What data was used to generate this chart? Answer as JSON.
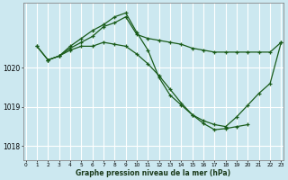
{
  "title": "Graphe pression niveau de la mer (hPa)",
  "background_color": "#cce8f0",
  "grid_color": "#ffffff",
  "line_color": "#1a5c1a",
  "xmin": 0,
  "xmax": 23,
  "ylim": [
    1017.65,
    1021.65
  ],
  "yticks": [
    1018,
    1019,
    1020
  ],
  "series1_x": [
    1,
    2,
    3,
    4,
    5,
    6,
    7,
    8,
    9,
    10,
    11,
    12,
    13,
    14,
    15,
    16,
    17,
    18,
    19,
    20,
    21,
    22,
    23
  ],
  "series1_y": [
    1020.55,
    1020.2,
    1020.3,
    1020.5,
    1020.65,
    1020.8,
    1021.05,
    1021.15,
    1021.3,
    1020.85,
    1020.75,
    1020.7,
    1020.65,
    1020.6,
    1020.5,
    1020.45,
    1020.4,
    1020.4,
    1020.4,
    1020.4,
    1020.4,
    1020.4,
    1020.65
  ],
  "series2_x": [
    1,
    2,
    3,
    4,
    5,
    6,
    7,
    8,
    9,
    10,
    11,
    12,
    13,
    14,
    15,
    16,
    17,
    18,
    19,
    20,
    21,
    22,
    23
  ],
  "series2_y": [
    1020.55,
    1020.2,
    1020.3,
    1020.55,
    1020.75,
    1020.95,
    1021.1,
    1021.3,
    1021.4,
    1020.9,
    1020.45,
    1019.75,
    1019.3,
    1019.05,
    1018.8,
    1018.65,
    1018.55,
    1018.5,
    1018.75,
    1019.05,
    1019.35,
    1019.6,
    1020.65
  ],
  "series3_x": [
    2,
    3,
    4,
    5,
    6,
    7,
    8,
    9,
    10,
    11,
    12,
    13,
    14,
    15,
    16,
    17,
    18,
    19,
    20
  ],
  "series3_y": [
    1020.2,
    1020.3,
    1020.45,
    1020.55,
    1020.55,
    1020.65,
    1020.6,
    1020.55,
    1020.35,
    1020.1,
    1019.8,
    1019.45,
    1019.1,
    1018.8,
    1018.58,
    1018.42,
    1018.45,
    1018.5,
    1018.55
  ]
}
